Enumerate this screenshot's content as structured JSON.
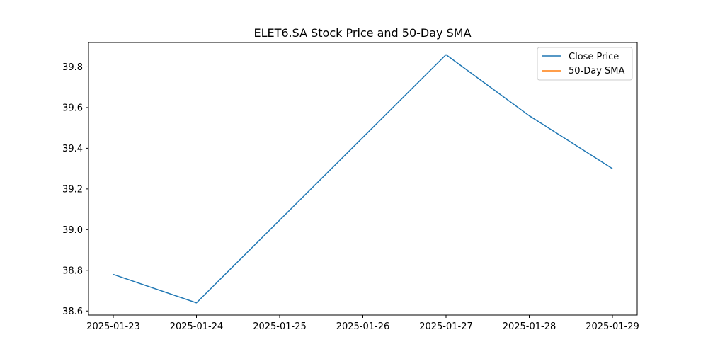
{
  "chart_data": {
    "type": "line",
    "title": "ELET6.SA Stock Price and 50-Day SMA",
    "xlabel": "",
    "ylabel": "",
    "x": [
      "2025-01-23",
      "2025-01-24",
      "2025-01-25",
      "2025-01-26",
      "2025-01-27",
      "2025-01-28",
      "2025-01-29"
    ],
    "x_tick_labels": [
      "2025-01-23",
      "2025-01-24",
      "2025-01-25",
      "2025-01-26",
      "2025-01-27",
      "2025-01-28",
      "2025-01-29"
    ],
    "y_ticks": [
      38.6,
      38.8,
      39.0,
      39.2,
      39.4,
      39.6,
      39.8
    ],
    "y_tick_labels": [
      "38.6",
      "38.8",
      "39.0",
      "39.2",
      "39.4",
      "39.6",
      "39.8"
    ],
    "ylim": [
      38.58,
      39.92
    ],
    "grid": false,
    "legend_position": "top-right",
    "series": [
      {
        "name": "Close Price",
        "color": "#1f77b4",
        "points": [
          {
            "x": "2025-01-23",
            "y": 38.78
          },
          {
            "x": "2025-01-24",
            "y": 38.64
          },
          {
            "x": "2025-01-27",
            "y": 39.86
          },
          {
            "x": "2025-01-28",
            "y": 39.56
          },
          {
            "x": "2025-01-29",
            "y": 39.3
          }
        ]
      },
      {
        "name": "50-Day SMA",
        "color": "#ff7f0e",
        "points": []
      }
    ]
  }
}
